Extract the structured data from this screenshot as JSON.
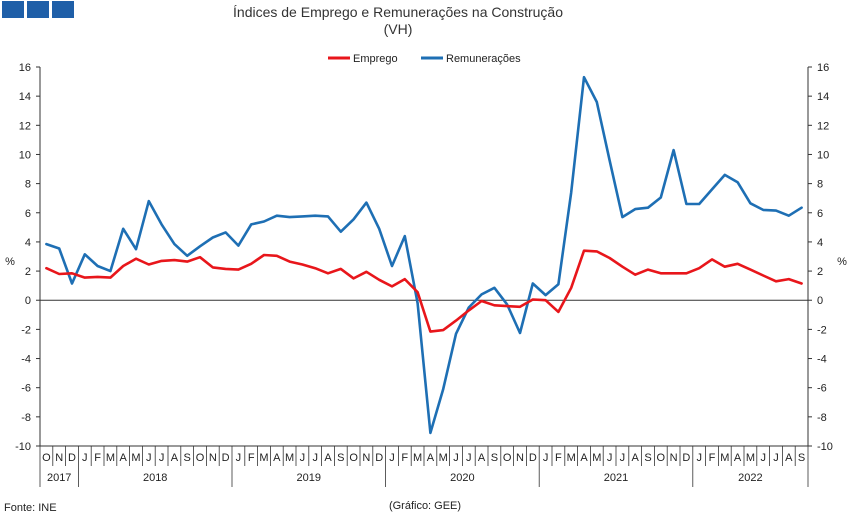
{
  "chart_data": {
    "type": "line",
    "title": "Índices de Emprego e Remunerações na Construção",
    "subtitle": "(VH)",
    "ylabel_left": "%",
    "ylabel_right": "%",
    "ylim": [
      -10,
      16
    ],
    "yticks": [
      16,
      14,
      12,
      10,
      8,
      6,
      4,
      2,
      0,
      -2,
      -4,
      -6,
      -8,
      -10
    ],
    "grid": false,
    "legend_position": "top-center",
    "months": [
      "O",
      "N",
      "D",
      "J",
      "F",
      "M",
      "A",
      "M",
      "J",
      "J",
      "A",
      "S",
      "O",
      "N",
      "D",
      "J",
      "F",
      "M",
      "A",
      "M",
      "J",
      "J",
      "A",
      "S",
      "O",
      "N",
      "D",
      "J",
      "F",
      "M",
      "A",
      "M",
      "J",
      "J",
      "A",
      "S",
      "O",
      "N",
      "D",
      "J",
      "F",
      "M",
      "A",
      "M",
      "J",
      "J",
      "A",
      "S",
      "O",
      "N",
      "D",
      "J",
      "F",
      "M",
      "A",
      "M",
      "J",
      "J",
      "A",
      "S"
    ],
    "year_groups": [
      {
        "label": "2017",
        "count": 3
      },
      {
        "label": "2018",
        "count": 12
      },
      {
        "label": "2019",
        "count": 12
      },
      {
        "label": "2020",
        "count": 12
      },
      {
        "label": "2021",
        "count": 12
      },
      {
        "label": "2022",
        "count": 9
      }
    ],
    "series": [
      {
        "name": "Emprego",
        "color": "#e8161b",
        "values": [
          2.2,
          1.8,
          1.85,
          1.55,
          1.6,
          1.55,
          2.35,
          2.85,
          2.45,
          2.7,
          2.75,
          2.65,
          2.95,
          2.25,
          2.15,
          2.1,
          2.5,
          3.1,
          3.05,
          2.65,
          2.45,
          2.2,
          1.85,
          2.15,
          1.5,
          1.95,
          1.4,
          0.95,
          1.45,
          0.55,
          -2.15,
          -2.05,
          -1.4,
          -0.7,
          -0.05,
          -0.35,
          -0.4,
          -0.45,
          0.05,
          0.0,
          -0.8,
          0.85,
          3.4,
          3.35,
          2.9,
          2.3,
          1.75,
          2.1,
          1.85,
          1.85,
          1.85,
          2.2,
          2.8,
          2.3,
          2.5,
          2.1,
          1.7,
          1.3,
          1.45,
          1.15
        ]
      },
      {
        "name": "Remunerações",
        "color": "#1e6fb4",
        "values": [
          3.85,
          3.55,
          1.15,
          3.15,
          2.35,
          2.0,
          4.9,
          3.5,
          6.8,
          5.2,
          3.85,
          3.05,
          3.7,
          4.3,
          4.65,
          3.75,
          5.2,
          5.4,
          5.8,
          5.7,
          5.75,
          5.8,
          5.75,
          4.7,
          5.55,
          6.7,
          4.9,
          2.35,
          4.4,
          -0.2,
          -9.1,
          -6.1,
          -2.3,
          -0.5,
          0.4,
          0.85,
          -0.3,
          -2.25,
          1.15,
          0.35,
          1.1,
          7.4,
          15.3,
          13.6,
          9.6,
          5.7,
          6.25,
          6.35,
          7.05,
          10.3,
          6.6,
          6.6,
          7.6,
          8.6,
          8.1,
          6.65,
          6.2,
          6.15,
          5.8,
          6.35
        ]
      }
    ],
    "footer_left": "Fonte: INE",
    "footer_center": "(Gráfico: GEE)"
  }
}
